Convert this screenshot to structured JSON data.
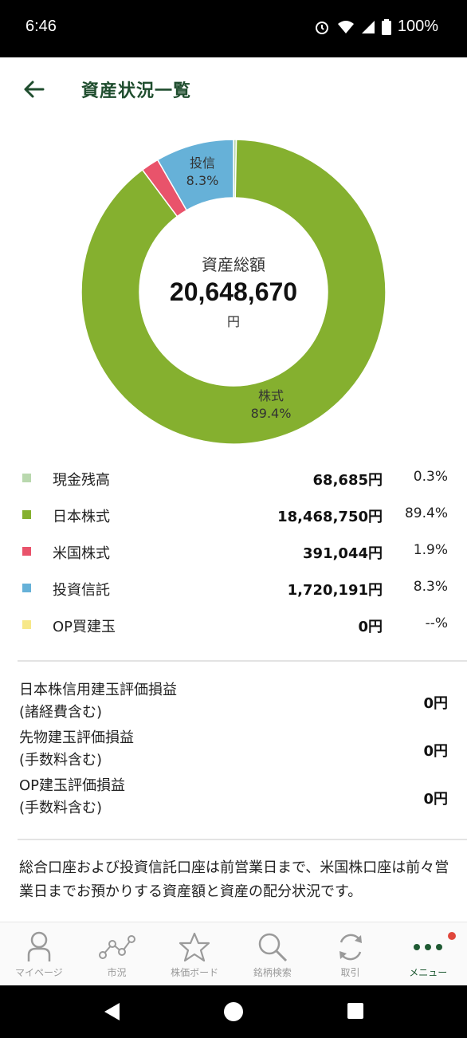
{
  "status_bar": {
    "time": "6:46",
    "battery": "100%"
  },
  "header": {
    "title": "資産状況一覧"
  },
  "chart_data": {
    "type": "pie",
    "center_title": "資産総額",
    "center_value": "20,648,670",
    "center_unit": "円",
    "slices": [
      {
        "name": "現金残高",
        "percent": 0.3,
        "color": "#b9d8ae"
      },
      {
        "name": "日本株式",
        "percent": 89.4,
        "color": "#85b02f"
      },
      {
        "name": "米国株式",
        "percent": 1.9,
        "color": "#e9536b"
      },
      {
        "name": "投資信託",
        "percent": 8.3,
        "color": "#66b1d8"
      },
      {
        "name": "OP買建玉",
        "percent": 0,
        "color": "#f7e889"
      }
    ],
    "slice_labels": [
      {
        "name": "投信",
        "percent_text": "8.3%"
      },
      {
        "name": "株式",
        "percent_text": "89.4%"
      }
    ]
  },
  "legend": [
    {
      "name": "現金残高",
      "amount": "68,685円",
      "percent": "0.3%",
      "color": "#b9d8ae"
    },
    {
      "name": "日本株式",
      "amount": "18,468,750円",
      "percent": "89.4%",
      "color": "#85b02f"
    },
    {
      "name": "米国株式",
      "amount": "391,044円",
      "percent": "1.9%",
      "color": "#e9536b"
    },
    {
      "name": "投資信託",
      "amount": "1,720,191円",
      "percent": "8.3%",
      "color": "#66b1d8"
    },
    {
      "name": "OP買建玉",
      "amount": "0円",
      "percent": "--%",
      "color": "#f7e889"
    }
  ],
  "profit_loss": [
    {
      "name_line1": "日本株信用建玉評価損益",
      "name_line2": "(諸経費含む)",
      "value": "0円"
    },
    {
      "name_line1": "先物建玉評価損益",
      "name_line2": "(手数料含む)",
      "value": "0円"
    },
    {
      "name_line1": "OP建玉評価損益",
      "name_line2": "(手数料含む)",
      "value": "0円"
    }
  ],
  "note": "総合口座および投資信託口座は前営業日まで、米国株口座は前々営業日までお預かりする資産額と資産の配分状況です。",
  "bottom_nav": [
    {
      "label": "マイページ",
      "icon": "person-icon"
    },
    {
      "label": "市況",
      "icon": "market-icon"
    },
    {
      "label": "株価ボード",
      "icon": "star-icon"
    },
    {
      "label": "銘柄検索",
      "icon": "search-icon"
    },
    {
      "label": "取引",
      "icon": "refresh-icon"
    },
    {
      "label": "メニュー",
      "icon": "more-icon",
      "active": true
    }
  ],
  "colors": {
    "accent": "#1f4d2e",
    "nav_active": "#1f5a33",
    "badge": "#e0473c"
  }
}
